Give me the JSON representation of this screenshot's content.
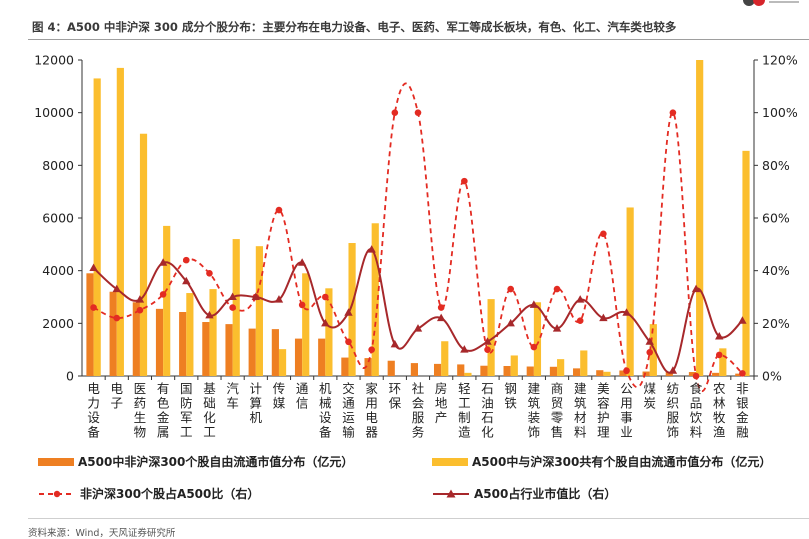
{
  "header": {
    "title": "图 4：A500 中非沪深 300 成分个股分布：主要分布在电力设备、电子、医药、军工等成长板块，有色、化工、汽车类也较多"
  },
  "footer": {
    "source": "资料来源：Wind，天风证券研究所"
  },
  "colors": {
    "bar1": "#ee7f22",
    "bar2": "#fbbe2e",
    "line1": "#e32b22",
    "line2": "#a7282b",
    "axis": "#333333"
  },
  "chart_data": {
    "type": "bar",
    "categories": [
      "电力设备",
      "电子",
      "医药生物",
      "有色金属",
      "国防军工",
      "基础化工",
      "汽车",
      "计算机",
      "传媒",
      "通信",
      "机械设备",
      "交通运输",
      "家用电器",
      "环保",
      "社会服务",
      "房地产",
      "轻工制造",
      "石油石化",
      "钢铁",
      "建筑装饰",
      "商贸零售",
      "建筑材料",
      "美容护理",
      "公用事业",
      "煤炭",
      "纺织服饰",
      "食品饮料",
      "农林牧渔",
      "非银金融"
    ],
    "ylim_left": [
      0,
      12000
    ],
    "ylim_right": [
      0,
      120
    ],
    "left_ticks": [
      "0",
      "2000",
      "4000",
      "6000",
      "8000",
      "10000",
      "12000"
    ],
    "right_ticks": [
      "0%",
      "20%",
      "40%",
      "60%",
      "80%",
      "100%",
      "120%"
    ],
    "series": [
      {
        "name": "A500中非沪深300个股自由流通市值分布（亿元）",
        "type": "bar",
        "axis": "left",
        "values": [
          3900,
          3200,
          2800,
          2550,
          2430,
          2050,
          1970,
          1800,
          1780,
          1420,
          1420,
          700,
          680,
          580,
          490,
          460,
          440,
          390,
          380,
          360,
          350,
          290,
          220,
          210,
          170,
          160,
          150,
          120,
          90
        ]
      },
      {
        "name": "A500中与沪深300共有个股自由流通市值分布（亿元）",
        "type": "bar",
        "axis": "left",
        "values": [
          11300,
          11700,
          9200,
          5700,
          3150,
          3300,
          5200,
          4930,
          1020,
          3900,
          3330,
          5050,
          5800,
          0,
          0,
          1320,
          120,
          2920,
          780,
          2800,
          640,
          970,
          160,
          6400,
          1970,
          0,
          12000,
          1050,
          8550
        ]
      },
      {
        "name": "非沪深300个股占A500比（右）",
        "type": "line",
        "axis": "right",
        "style": "dashed-dot",
        "values": [
          26,
          22,
          25,
          31,
          44,
          39,
          26,
          30,
          63,
          27,
          30,
          13,
          10,
          100,
          100,
          26,
          74,
          10,
          33,
          11,
          33,
          21,
          54,
          2,
          9,
          100,
          0,
          8,
          1
        ]
      },
      {
        "name": "A500占行业市值比（右）",
        "type": "line",
        "axis": "right",
        "style": "solid-triangle",
        "values": [
          41,
          33,
          29,
          43,
          36,
          23,
          30,
          30,
          29,
          43,
          20,
          24,
          48,
          12,
          18,
          22,
          10,
          13,
          20,
          27,
          18,
          29,
          22,
          24,
          13,
          2,
          33,
          15,
          21
        ]
      }
    ]
  }
}
